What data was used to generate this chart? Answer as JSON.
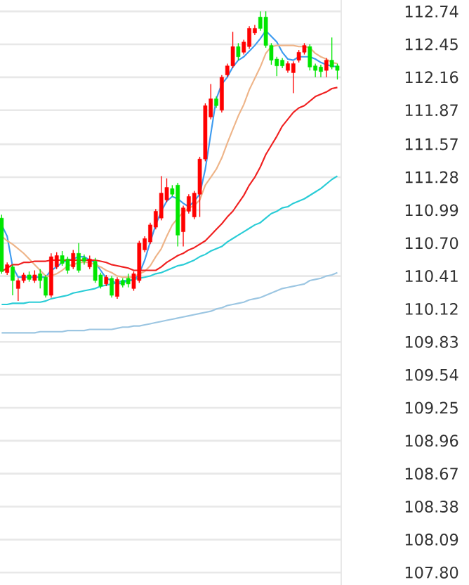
{
  "chart_data": {
    "type": "candlestick",
    "categories": [
      null,
      null,
      null,
      null,
      null,
      null,
      null,
      null,
      null,
      null,
      null,
      null,
      null,
      null,
      null,
      null,
      null,
      null,
      null,
      null,
      null,
      null,
      null,
      null,
      null,
      null,
      null,
      null,
      null,
      null,
      null,
      null,
      null,
      null,
      null,
      null,
      null,
      null,
      null,
      null,
      null,
      null,
      null,
      null,
      null,
      null,
      null,
      null,
      null,
      null,
      null,
      null,
      null,
      null,
      null,
      null,
      null,
      null,
      null,
      null,
      null,
      null
    ],
    "ohlc": [
      [
        110.92,
        110.95,
        110.43,
        110.45
      ],
      [
        110.44,
        110.53,
        110.42,
        110.51
      ],
      [
        110.49,
        110.51,
        110.24,
        110.37
      ],
      [
        110.3,
        110.39,
        110.19,
        110.37
      ],
      [
        110.37,
        110.44,
        110.35,
        110.42
      ],
      [
        110.42,
        110.45,
        110.36,
        110.38
      ],
      [
        110.37,
        110.46,
        110.35,
        110.42
      ],
      [
        110.43,
        110.47,
        110.3,
        110.37
      ],
      [
        110.4,
        110.42,
        110.22,
        110.24
      ],
      [
        110.24,
        110.61,
        110.22,
        110.58
      ],
      [
        110.49,
        110.62,
        110.47,
        110.59
      ],
      [
        110.59,
        110.63,
        110.5,
        110.52
      ],
      [
        110.56,
        110.58,
        110.43,
        110.46
      ],
      [
        110.49,
        110.64,
        110.47,
        110.61
      ],
      [
        110.61,
        110.7,
        110.44,
        110.46
      ],
      [
        110.57,
        110.6,
        110.51,
        110.54
      ],
      [
        110.49,
        110.59,
        110.47,
        110.56
      ],
      [
        110.54,
        110.57,
        110.35,
        110.37
      ],
      [
        110.42,
        110.44,
        110.3,
        110.32
      ],
      [
        110.34,
        110.42,
        110.32,
        110.4
      ],
      [
        110.39,
        110.41,
        110.22,
        110.24
      ],
      [
        110.23,
        110.4,
        110.21,
        110.38
      ],
      [
        110.37,
        110.39,
        110.31,
        110.33
      ],
      [
        110.39,
        110.43,
        110.31,
        110.34
      ],
      [
        110.3,
        110.45,
        110.28,
        110.43
      ],
      [
        110.37,
        110.72,
        110.35,
        110.7
      ],
      [
        110.64,
        110.76,
        110.62,
        110.74
      ],
      [
        110.71,
        110.88,
        110.69,
        110.86
      ],
      [
        110.84,
        111.0,
        110.82,
        110.98
      ],
      [
        110.92,
        111.29,
        110.9,
        111.14
      ],
      [
        111.08,
        111.27,
        111.06,
        111.19
      ],
      [
        111.18,
        111.21,
        111.11,
        111.13
      ],
      [
        111.21,
        111.23,
        110.67,
        110.77
      ],
      [
        110.8,
        111.03,
        110.67,
        111.01
      ],
      [
        110.98,
        111.13,
        110.96,
        111.11
      ],
      [
        110.93,
        111.16,
        110.91,
        111.14
      ],
      [
        111.13,
        111.46,
        110.93,
        111.44
      ],
      [
        111.44,
        111.93,
        111.42,
        111.91
      ],
      [
        111.81,
        112.1,
        111.79,
        111.97
      ],
      [
        111.97,
        111.99,
        111.89,
        111.91
      ],
      [
        111.87,
        112.18,
        111.85,
        112.16
      ],
      [
        112.18,
        112.28,
        112.16,
        112.26
      ],
      [
        112.26,
        112.56,
        112.24,
        112.43
      ],
      [
        112.43,
        112.46,
        112.31,
        112.34
      ],
      [
        112.38,
        112.49,
        112.36,
        112.47
      ],
      [
        112.43,
        112.61,
        112.41,
        112.59
      ],
      [
        112.55,
        112.62,
        112.53,
        112.59
      ],
      [
        112.69,
        112.74,
        112.57,
        112.59
      ],
      [
        112.69,
        112.74,
        112.42,
        112.44
      ],
      [
        112.44,
        112.46,
        112.27,
        112.31
      ],
      [
        112.32,
        112.34,
        112.17,
        112.26
      ],
      [
        112.31,
        112.33,
        112.24,
        112.26
      ],
      [
        112.22,
        112.3,
        112.2,
        112.28
      ],
      [
        112.2,
        112.3,
        112.02,
        112.28
      ],
      [
        112.31,
        112.4,
        112.29,
        112.38
      ],
      [
        112.38,
        112.46,
        112.36,
        112.44
      ],
      [
        112.43,
        112.45,
        112.22,
        112.25
      ],
      [
        112.26,
        112.28,
        112.16,
        112.22
      ],
      [
        112.25,
        112.27,
        112.16,
        112.21
      ],
      [
        112.22,
        112.33,
        112.16,
        112.31
      ],
      [
        112.31,
        112.51,
        112.23,
        112.25
      ],
      [
        112.26,
        112.28,
        112.14,
        112.22
      ]
    ],
    "colors": [
      "#00e600",
      "#ff0000",
      "#00e600",
      "#ff0000",
      "#ff0000",
      "#00e600",
      "#ff0000",
      "#00e600",
      "#00e600",
      "#ff0000",
      "#ff0000",
      "#00e600",
      "#00e600",
      "#ff0000",
      "#00e600",
      "#00e600",
      "#ff0000",
      "#00e600",
      "#00e600",
      "#ff0000",
      "#00e600",
      "#ff0000",
      "#00e600",
      "#00e600",
      "#ff0000",
      "#ff0000",
      "#ff0000",
      "#ff0000",
      "#ff0000",
      "#ff0000",
      "#ff0000",
      "#00e600",
      "#00e600",
      "#ff0000",
      "#ff0000",
      "#ff0000",
      "#ff0000",
      "#ff0000",
      "#ff0000",
      "#00e600",
      "#ff0000",
      "#ff0000",
      "#ff0000",
      "#00e600",
      "#ff0000",
      "#ff0000",
      "#ff0000",
      "#00e600",
      "#00e600",
      "#00e600",
      "#00e600",
      "#00e600",
      "#ff0000",
      "#ff0000",
      "#ff0000",
      "#ff0000",
      "#00e600",
      "#00e600",
      "#00e600",
      "#ff0000",
      "#00e600",
      "#00e600"
    ],
    "series": [
      {
        "type": "line",
        "color": "#3d9bf0",
        "values": [
          110.86,
          110.76,
          110.49,
          110.4,
          110.4,
          110.4,
          110.4,
          110.4,
          110.4,
          110.46,
          110.49,
          110.53,
          110.55,
          110.56,
          110.58,
          110.58,
          110.55,
          110.53,
          110.46,
          110.39,
          110.37,
          110.34,
          110.35,
          110.37,
          110.37,
          110.43,
          110.55,
          110.71,
          110.86,
          110.98,
          111.07,
          111.11,
          111.09,
          111.05,
          111.02,
          111.07,
          111.13,
          111.35,
          111.66,
          111.97,
          112.1,
          112.16,
          112.25,
          112.31,
          112.34,
          112.39,
          112.44,
          112.5,
          112.57,
          112.52,
          112.47,
          112.38,
          112.32,
          112.31,
          112.34,
          112.34,
          112.34,
          112.32,
          112.29,
          112.27,
          112.26,
          112.25
        ]
      },
      {
        "type": "line",
        "color": "#eeb488",
        "values": [
          110.76,
          110.72,
          110.69,
          110.65,
          110.61,
          110.56,
          110.51,
          110.46,
          110.41,
          110.41,
          110.43,
          110.46,
          110.5,
          110.51,
          110.53,
          110.53,
          110.53,
          110.51,
          110.49,
          110.46,
          110.44,
          110.41,
          110.4,
          110.4,
          110.4,
          110.43,
          110.45,
          110.5,
          110.58,
          110.65,
          110.76,
          110.86,
          110.92,
          110.97,
          111.01,
          111.03,
          111.08,
          111.21,
          111.28,
          111.35,
          111.45,
          111.58,
          111.7,
          111.82,
          111.92,
          112.05,
          112.15,
          112.25,
          112.37,
          112.43,
          112.44,
          112.44,
          112.44,
          112.44,
          112.43,
          112.43,
          112.42,
          112.37,
          112.34,
          112.32,
          112.29,
          112.28
        ]
      },
      {
        "type": "line",
        "color": "#f02020",
        "values": [
          110.45,
          110.48,
          110.51,
          110.51,
          110.53,
          110.53,
          110.54,
          110.54,
          110.54,
          110.55,
          110.55,
          110.55,
          110.55,
          110.55,
          110.55,
          110.55,
          110.55,
          110.55,
          110.54,
          110.53,
          110.51,
          110.5,
          110.49,
          110.48,
          110.46,
          110.46,
          110.46,
          110.46,
          110.46,
          110.49,
          110.53,
          110.56,
          110.59,
          110.61,
          110.64,
          110.66,
          110.69,
          110.72,
          110.77,
          110.82,
          110.87,
          110.93,
          110.98,
          111.05,
          111.12,
          111.21,
          111.28,
          111.37,
          111.48,
          111.56,
          111.64,
          111.73,
          111.79,
          111.85,
          111.89,
          111.91,
          111.95,
          111.99,
          112.01,
          112.03,
          112.06,
          112.07
        ]
      },
      {
        "type": "line",
        "color": "#29ccd6",
        "values": [
          110.16,
          110.16,
          110.17,
          110.17,
          110.17,
          110.18,
          110.18,
          110.18,
          110.19,
          110.21,
          110.22,
          110.23,
          110.24,
          110.26,
          110.27,
          110.28,
          110.29,
          110.3,
          110.32,
          110.33,
          110.34,
          110.35,
          110.37,
          110.37,
          110.38,
          110.39,
          110.4,
          110.41,
          110.43,
          110.44,
          110.46,
          110.48,
          110.5,
          110.51,
          110.53,
          110.55,
          110.58,
          110.6,
          110.63,
          110.65,
          110.67,
          110.71,
          110.74,
          110.77,
          110.8,
          110.83,
          110.86,
          110.88,
          110.92,
          110.96,
          110.98,
          111.01,
          111.02,
          111.05,
          111.07,
          111.09,
          111.12,
          111.15,
          111.18,
          111.22,
          111.26,
          111.29
        ]
      },
      {
        "type": "line",
        "color": "#9cc6e2",
        "values": [
          109.91,
          109.91,
          109.91,
          109.91,
          109.91,
          109.91,
          109.91,
          109.92,
          109.92,
          109.92,
          109.92,
          109.92,
          109.93,
          109.93,
          109.93,
          109.93,
          109.94,
          109.94,
          109.94,
          109.94,
          109.94,
          109.95,
          109.96,
          109.96,
          109.97,
          109.97,
          109.98,
          109.99,
          110.0,
          110.01,
          110.02,
          110.03,
          110.04,
          110.05,
          110.06,
          110.07,
          110.08,
          110.09,
          110.1,
          110.12,
          110.13,
          110.15,
          110.16,
          110.17,
          110.18,
          110.2,
          110.21,
          110.22,
          110.24,
          110.26,
          110.28,
          110.3,
          110.31,
          110.32,
          110.33,
          110.34,
          110.37,
          110.38,
          110.39,
          110.41,
          110.42,
          110.44
        ]
      }
    ],
    "ylim": [
      107.69,
      112.84
    ],
    "yticks": [
      112.74,
      112.45,
      112.16,
      111.87,
      111.57,
      111.28,
      110.99,
      {
        "value": 110.7,
        "label": "110.70"
      },
      110.41,
      110.12,
      109.83,
      109.54,
      109.25,
      108.96,
      108.67,
      108.38,
      108.09,
      {
        "value": 107.8,
        "label": "107.80"
      }
    ],
    "grid": "y",
    "tick_labels": "y"
  }
}
